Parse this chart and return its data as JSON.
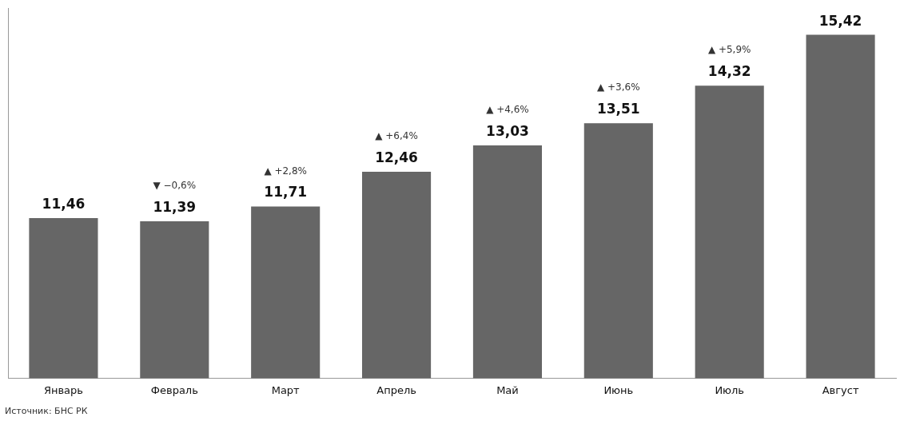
{
  "chart_data": {
    "type": "bar",
    "categories": [
      "Январь",
      "Февраль",
      "Март",
      "Апрель",
      "Май",
      "Июнь",
      "Июль",
      "Август"
    ],
    "values": [
      11.46,
      11.39,
      11.71,
      12.46,
      13.03,
      13.51,
      14.32,
      15.42
    ],
    "value_labels": [
      "11,46",
      "11,39",
      "11,71",
      "12,46",
      "13,03",
      "13,51",
      "14,32",
      "15,42"
    ],
    "color": "#666666",
    "ylim": [
      8,
      16
    ],
    "tick_labels": "x",
    "grid": false,
    "legend": false,
    "annotations": [
      "▼ −0,6%",
      "▲ +2,8%",
      "▲ +6,4%",
      "▲ +4,6%",
      "▲ +3,6%",
      "▲ +5,9%",
      "Источник: БНС РК"
    ]
  }
}
